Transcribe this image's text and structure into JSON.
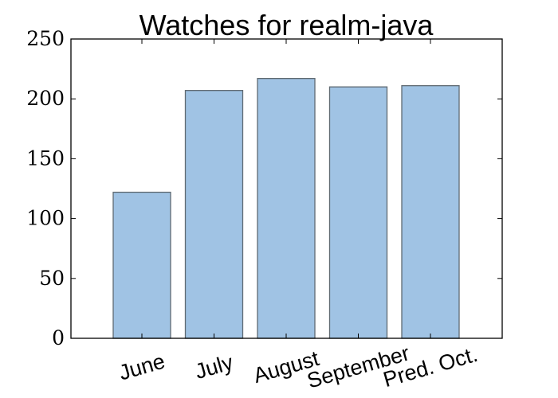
{
  "chart_data": {
    "type": "bar",
    "title": "Watches for realm-java",
    "xlabel": "",
    "ylabel": "",
    "categories": [
      "June",
      "July",
      "August",
      "September",
      "Pred. Oct."
    ],
    "values": [
      122,
      207,
      217,
      210,
      211
    ],
    "ylim": [
      0,
      250
    ],
    "yticks": [
      "0",
      "50",
      "100",
      "150",
      "200",
      "250"
    ],
    "grid": false,
    "bar_color": "#a0c3e4",
    "bar_edge_color": "#5f6a72"
  }
}
